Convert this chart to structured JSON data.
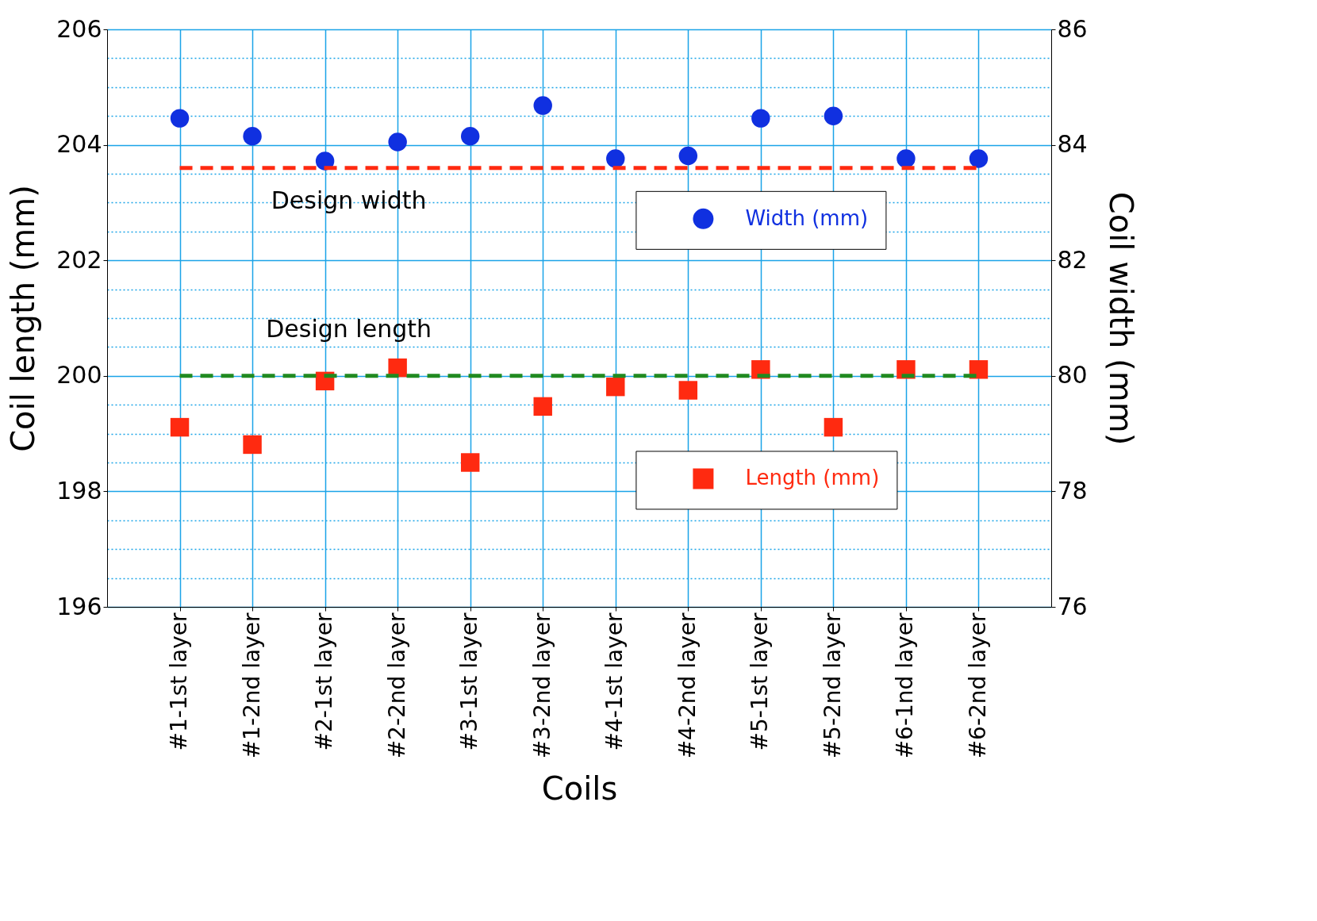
{
  "chart_data": {
    "type": "scatter",
    "xlabel": "Coils",
    "ylabel": "Coil length (mm)",
    "y2label": "Coil width (mm)",
    "categories": [
      "#1-1st layer",
      "#1-2nd layer",
      "#2-1st layer",
      "#2-2nd layer",
      "#3-1st layer",
      "#3-2nd layer",
      "#4-1st layer",
      "#4-2nd layer",
      "#5-1st layer",
      "#5-2nd layer",
      "#6-1nd layer",
      "#6-2nd layer"
    ],
    "series": [
      {
        "name": "Width (mm)",
        "color": "#1030e0",
        "axis": "y2",
        "marker": "circle",
        "values": [
          84.46,
          84.15,
          83.72,
          84.05,
          84.15,
          84.68,
          83.76,
          83.81,
          84.46,
          84.5,
          83.76,
          83.76
        ]
      },
      {
        "name": "Length (mm)",
        "color": "#ff2a10",
        "axis": "y",
        "marker": "square",
        "values": [
          199.11,
          198.81,
          199.91,
          200.14,
          198.5,
          199.47,
          199.81,
          199.75,
          200.11,
          199.11,
          200.11,
          200.11
        ]
      }
    ],
    "ylim": [
      196,
      206
    ],
    "yticks": [
      196,
      {
        "value": 196.5,
        "label": null
      },
      {
        "value": 197,
        "label": null
      },
      {
        "value": 197.5,
        "label": null
      },
      198,
      {
        "value": 198.5,
        "label": null
      },
      {
        "value": 199,
        "label": null
      },
      {
        "value": 199.5,
        "label": null
      },
      200,
      {
        "value": 200.5,
        "label": null
      },
      {
        "value": 201,
        "label": null
      },
      {
        "value": 201.5,
        "label": null
      },
      202,
      {
        "value": 202.5,
        "label": null
      },
      {
        "value": 203,
        "label": null
      },
      {
        "value": 203.5,
        "label": null
      },
      204,
      {
        "value": 204.5,
        "label": null
      },
      {
        "value": 205,
        "label": null
      },
      {
        "value": 205.5,
        "label": null
      },
      206
    ],
    "y2lim": [
      76,
      86
    ],
    "y2ticks": [
      76,
      78,
      80,
      82,
      84,
      86
    ],
    "ref_lines": [
      {
        "axis": "y2",
        "value": 83.6,
        "label": "Design width",
        "color": "#ff2a10",
        "line_style": "dashed"
      },
      {
        "axis": "y",
        "value": 200,
        "label": "Design length",
        "color": "#208a20",
        "line_style": "dashed"
      }
    ],
    "grid": true,
    "legend": "right"
  }
}
